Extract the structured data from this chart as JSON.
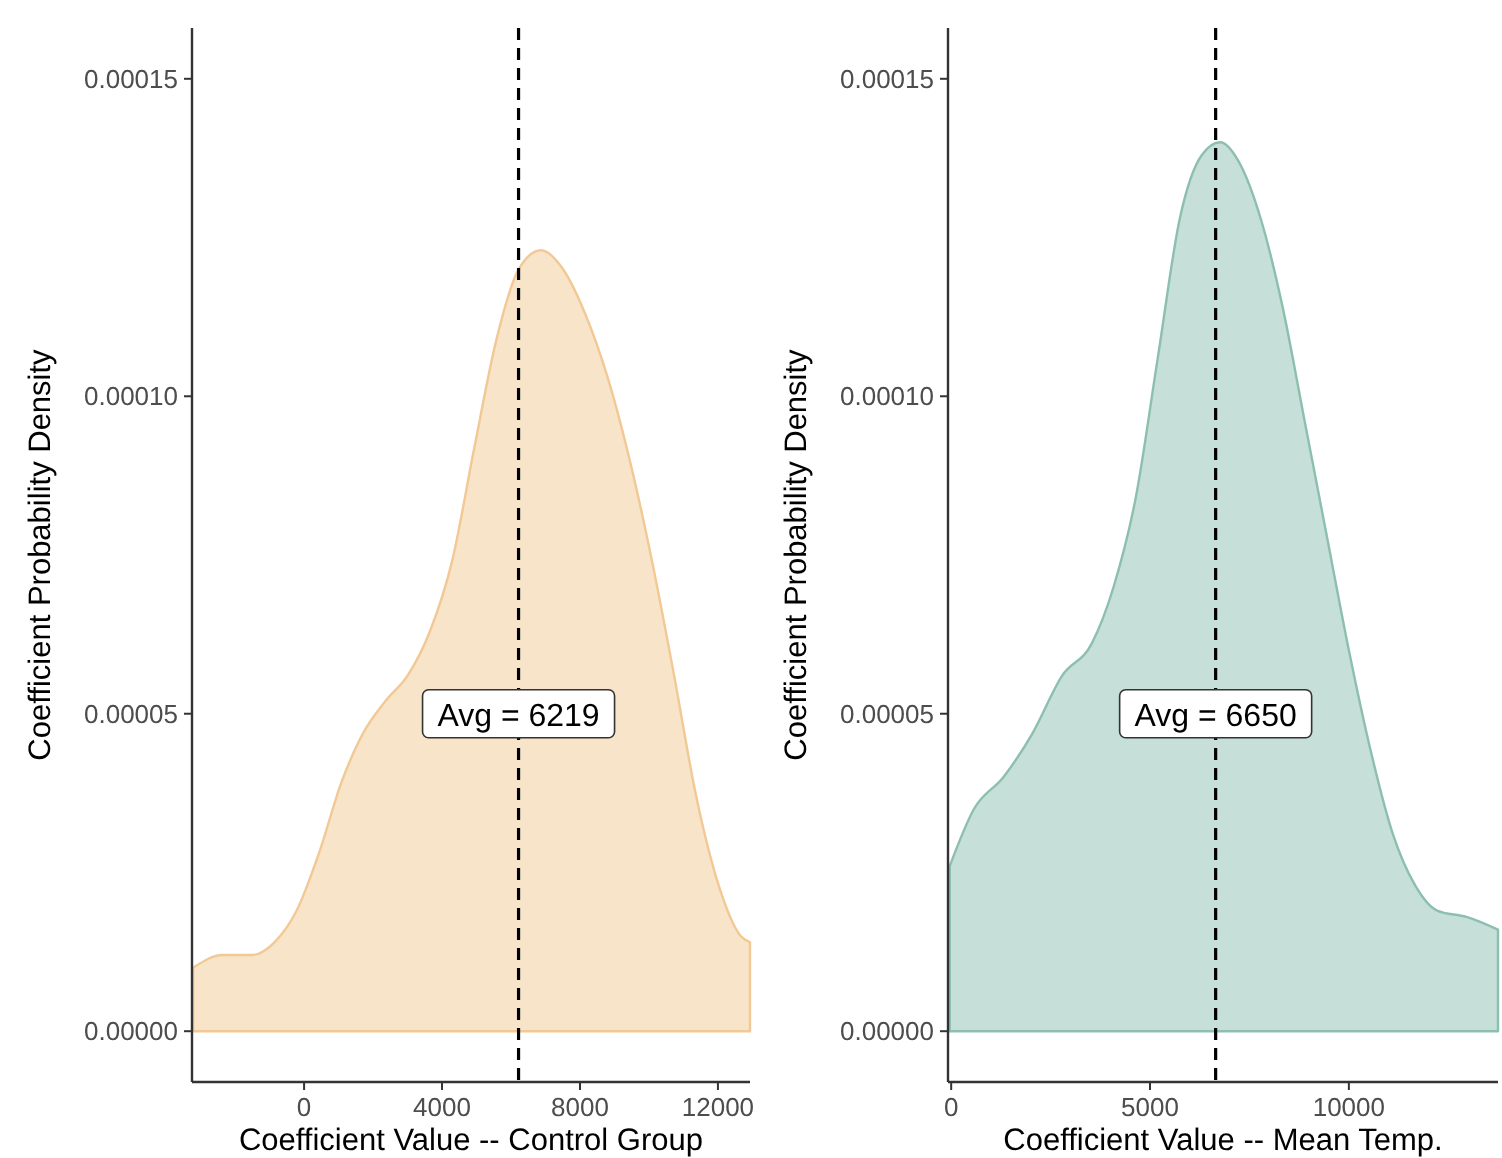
{
  "chart_data": [
    {
      "type": "area",
      "xlabel": "Coefficient Value -- Control Group",
      "ylabel": "Coefficient Probability Density",
      "xlim": [
        -3250,
        12930
      ],
      "ylim": [
        -8e-06,
        0.000158
      ],
      "xticks": [
        0,
        4000,
        8000,
        12000
      ],
      "yticks": [
        {
          "value": 0,
          "label": "0.00000"
        },
        {
          "value": 5e-05,
          "label": "0.00005"
        },
        {
          "value": 0.0001,
          "label": "0.00010"
        },
        {
          "value": 0.00015,
          "label": "0.00015"
        }
      ],
      "grid": false,
      "x": [
        -3219,
        -2360,
        -1500,
        -860,
        -215,
        430,
        1070,
        1717,
        2360,
        3000,
        3650,
        4290,
        4940,
        5580,
        6220,
        6870,
        7510,
        8150,
        8800,
        9440,
        10090,
        10730,
        11370,
        12020,
        12660,
        12930
      ],
      "series": [
        {
          "color": "#f2c994",
          "values": [
            1e-05,
            1.2e-05,
            1.2e-05,
            1.4e-05,
            1.9e-05,
            2.8e-05,
            3.9e-05,
            4.7e-05,
            5.2e-05,
            5.6e-05,
            6.3e-05,
            7.4e-05,
            9.2e-05,
            0.000109,
            0.00012,
            0.000123,
            0.00012,
            0.000113,
            0.000103,
            9e-05,
            7.4e-05,
            5.6e-05,
            3.7e-05,
            2.3e-05,
            1.5e-05,
            1.4e-05
          ]
        }
      ],
      "ref_lines": [
        {
          "axis": "x",
          "value": 6219,
          "label": "Avg = 6219",
          "line_style": "dashed",
          "color": "#000000"
        }
      ]
    },
    {
      "type": "area",
      "xlabel": "Coefficient Value -- Mean Temp.",
      "ylabel": "Coefficient Probability Density",
      "xlim": [
        -80,
        13750
      ],
      "ylim": [
        -8e-06,
        0.000158
      ],
      "xticks": [
        0,
        5000,
        10000
      ],
      "yticks": [
        {
          "value": 0,
          "label": "0.00000"
        },
        {
          "value": 5e-05,
          "label": "0.00005"
        },
        {
          "value": 0.0001,
          "label": "0.00010"
        },
        {
          "value": 0.00015,
          "label": "0.00015"
        }
      ],
      "grid": false,
      "x": [
        -37,
        573,
        1312,
        2052,
        2791,
        3530,
        4085,
        4640,
        5194,
        5749,
        6303,
        6765,
        7227,
        7782,
        8336,
        8891,
        9445,
        10000,
        10555,
        11109,
        11664,
        12218,
        12957,
        13750
      ],
      "series": [
        {
          "color": "#8dbfb1",
          "values": [
            2.6e-05,
            3.5e-05,
            4e-05,
            4.7e-05,
            5.6e-05,
            6.1e-05,
            7e-05,
            8.4e-05,
            0.000106,
            0.000128,
            0.000138,
            0.00014,
            0.000137,
            0.000128,
            0.000114,
            9.6e-05,
            7.8e-05,
            6e-05,
            4.4e-05,
            3.1e-05,
            2.3e-05,
            1.9e-05,
            1.8e-05,
            1.6e-05
          ]
        }
      ],
      "ref_lines": [
        {
          "axis": "x",
          "value": 6650,
          "label": "Avg = 6650",
          "line_style": "dashed",
          "color": "#000000"
        }
      ]
    }
  ]
}
